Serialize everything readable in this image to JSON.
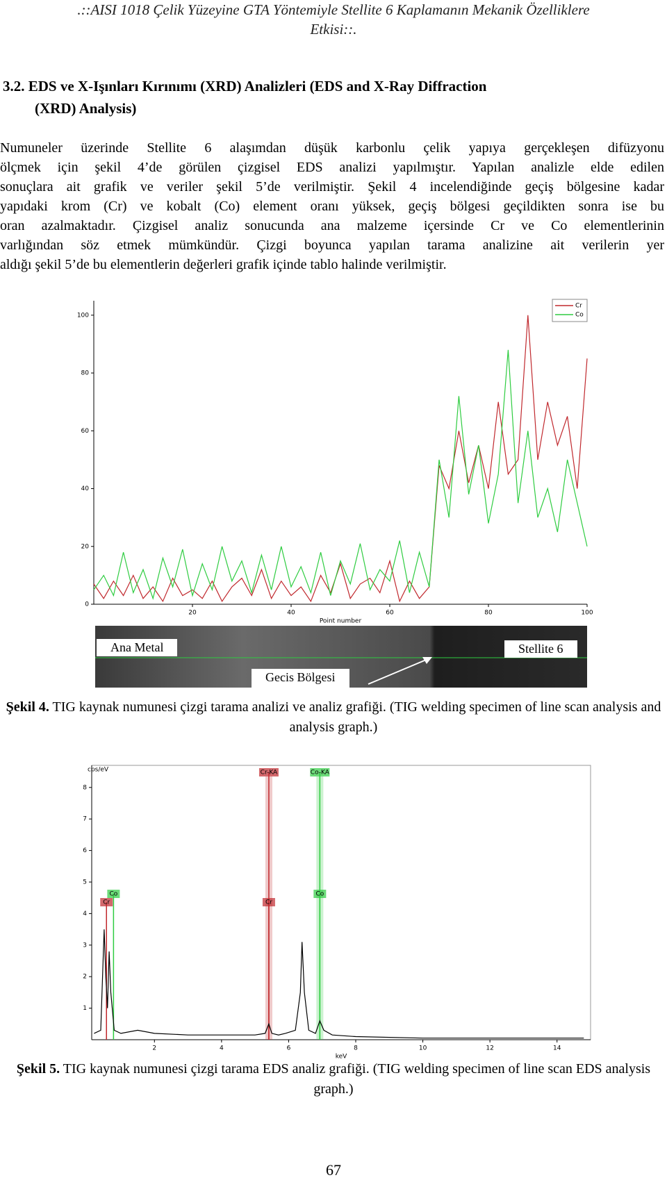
{
  "header": {
    "lines": [
      ".::AISI 1018 Çelik Yüzeyine GTA Yöntemiyle Stellite 6 Kaplamanın Mekanik Özelliklere",
      "Etkisi::."
    ]
  },
  "heading": {
    "lines": [
      "3.2. EDS ve X-Işınları Kırınımı (XRD)  Analizleri (EDS and X-Ray Diffraction",
      "(XRD) Analysis)"
    ]
  },
  "paragraph": {
    "lines": [
      "Numuneler üzerinde Stellite 6 alaşımdan düşük karbonlu çelik yapıya gerçekleşen difüzyonu",
      "ölçmek için şekil 4’de görülen çizgisel EDS analizi yapılmıştır. Yapılan analizle elde edilen",
      "sonuçlara ait grafik ve veriler şekil 5’de verilmiştir. Şekil 4 incelendiğinde geçiş bölgesine kadar",
      "yapıdaki krom (Cr) ve kobalt (Co) element oranı yüksek, geçiş bölgesi geçildikten sonra ise bu",
      "oran azalmaktadır. Çizgisel analiz sonucunda ana malzeme içersinde Cr ve Co elementlerinin",
      "varlığından söz etmek mümkündür. Çizgi boyunca yapılan tarama analizine ait verilerin yer",
      "aldığı şekil 5’de bu elementlerin değerleri grafik içinde tablo halinde verilmiştir."
    ]
  },
  "photo_labels": [
    "Ana Metal",
    "Stellite 6",
    "Gecis Bölgesi"
  ],
  "captions": [
    {
      "label": "Şekil 4.",
      "text": "TIG kaynak numunesi çizgi tarama analizi ve analiz grafiği. (TIG welding specimen of line scan analysis and analysis graph.)"
    },
    {
      "label": "Şekil 5.",
      "text": "TIG kaynak numunesi çizgi tarama EDS analiz grafiği. (TIG welding specimen of line scan EDS analysis graph.)"
    }
  ],
  "page_number": "67",
  "chart_data": [
    {
      "type": "line",
      "x_label": "Point number",
      "xlim": [
        0,
        100
      ],
      "ylim": [
        0,
        105
      ],
      "xticks": [
        20,
        40,
        60,
        80,
        100
      ],
      "yticks": [
        0,
        20,
        40,
        60,
        80,
        100
      ],
      "legend": "upper right",
      "x": [
        0,
        2,
        4,
        6,
        8,
        10,
        12,
        14,
        16,
        18,
        20,
        22,
        24,
        26,
        28,
        30,
        32,
        34,
        36,
        38,
        40,
        42,
        44,
        46,
        48,
        50,
        52,
        54,
        56,
        58,
        60,
        62,
        64,
        66,
        68,
        70,
        72,
        74,
        76,
        78,
        80,
        82,
        84,
        86,
        88,
        90,
        92,
        94,
        96,
        98,
        100
      ],
      "series": [
        {
          "name": "Cr",
          "color": "#c0282d",
          "values": [
            7,
            2,
            8,
            3,
            10,
            2,
            6,
            1,
            9,
            3,
            5,
            2,
            8,
            1,
            6,
            9,
            3,
            12,
            2,
            8,
            3,
            6,
            1,
            10,
            4,
            14,
            2,
            7,
            9,
            4,
            15,
            1,
            8,
            2,
            6,
            48,
            40,
            60,
            42,
            55,
            40,
            70,
            45,
            50,
            100,
            50,
            70,
            55,
            65,
            40,
            85
          ]
        },
        {
          "name": "Co",
          "color": "#2ecc40",
          "values": [
            5,
            10,
            3,
            18,
            4,
            12,
            2,
            16,
            6,
            19,
            3,
            14,
            5,
            20,
            8,
            15,
            4,
            17,
            5,
            20,
            6,
            13,
            4,
            18,
            3,
            15,
            7,
            21,
            5,
            12,
            8,
            22,
            4,
            18,
            6,
            50,
            30,
            72,
            38,
            55,
            28,
            45,
            88,
            35,
            60,
            30,
            40,
            25,
            50,
            35,
            20
          ]
        }
      ]
    },
    {
      "type": "line",
      "y_label": "cps/eV",
      "x_label": "keV",
      "xlim": [
        0.13,
        15
      ],
      "ylim": [
        0,
        8.7
      ],
      "xticks": [
        2,
        4,
        6,
        8,
        10,
        12,
        14
      ],
      "yticks": [
        1,
        2,
        3,
        4,
        5,
        6,
        7,
        8
      ],
      "x": [
        0.2,
        0.4,
        0.5,
        0.55,
        0.6,
        0.65,
        0.7,
        0.8,
        1,
        1.5,
        2,
        3,
        4,
        5,
        5.3,
        5.41,
        5.5,
        5.7,
        5.9,
        6.2,
        6.35,
        6.4,
        6.47,
        6.6,
        6.8,
        6.93,
        7.05,
        7.3,
        8,
        10,
        14.8
      ],
      "series": [
        {
          "color": "#000000",
          "values": [
            0.2,
            0.3,
            3.5,
            2,
            1,
            2.8,
            1.5,
            0.3,
            0.2,
            0.3,
            0.2,
            0.15,
            0.15,
            0.15,
            0.2,
            0.5,
            0.2,
            0.15,
            0.2,
            0.3,
            1.5,
            3.1,
            1.5,
            0.3,
            0.2,
            0.6,
            0.3,
            0.15,
            0.1,
            0.05,
            0.05
          ]
        }
      ],
      "markers": [
        {
          "label": "Cr-KA",
          "x": 5.41,
          "color": "#c0282d"
        },
        {
          "label": "Co-KA",
          "x": 6.93,
          "color": "#2ecc40"
        },
        {
          "label": "Cr",
          "x": 0.57,
          "color": "#c0282d"
        },
        {
          "label": "Cr",
          "x": 5.41,
          "color": "#c0282d"
        },
        {
          "label": "Co",
          "x": 0.78,
          "color": "#2ecc40"
        },
        {
          "label": "Co",
          "x": 6.93,
          "color": "#2ecc40"
        }
      ]
    }
  ]
}
